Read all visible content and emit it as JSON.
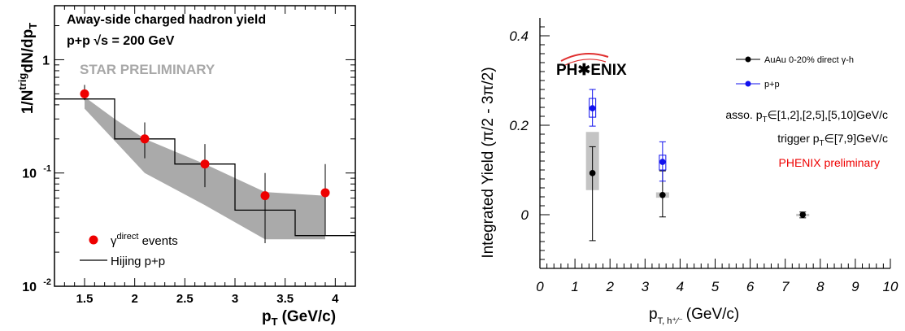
{
  "chart_data": [
    {
      "type": "scatter",
      "title_lines": [
        "Away-side charged hadron yield",
        "p+p √s = 200 GeV"
      ],
      "preliminary": "STAR PRELIMINARY",
      "xlabel": "p",
      "xlabel_sub": "T",
      "xlabel_unit": "(GeV/c)",
      "ylabel_parts": [
        "1/N",
        "trig",
        "dN/dp",
        "T"
      ],
      "xlim": [
        1.2,
        4.2
      ],
      "ylim": [
        0.01,
        3.0
      ],
      "yscale": "log",
      "xticks": [
        1.5,
        2,
        2.5,
        3,
        3.5,
        4
      ],
      "xtick_labels": [
        "1.5",
        "2",
        "2.5",
        "3",
        "3.5",
        "4"
      ],
      "yticks": [
        {
          "value": 1,
          "base": "1",
          "exp": ""
        },
        {
          "value": 0.1,
          "base": "10",
          "exp": "-1"
        },
        {
          "value": 0.01,
          "base": "10",
          "exp": "-2"
        }
      ],
      "band": {
        "color": "#aaaaaa",
        "upper": [
          [
            1.5,
            0.47
          ],
          [
            1.8,
            0.3
          ],
          [
            2.1,
            0.2
          ],
          [
            2.7,
            0.12
          ],
          [
            3.3,
            0.068
          ],
          [
            3.9,
            0.063
          ]
        ],
        "lower": [
          [
            3.9,
            0.026
          ],
          [
            3.3,
            0.026
          ],
          [
            2.7,
            0.052
          ],
          [
            2.1,
            0.1
          ],
          [
            1.5,
            0.37
          ]
        ]
      },
      "hijing": {
        "color": "#000000",
        "bins": [
          [
            1.2,
            1.8,
            0.45
          ],
          [
            1.8,
            2.4,
            0.2
          ],
          [
            2.4,
            3.0,
            0.12
          ],
          [
            3.0,
            3.6,
            0.047
          ],
          [
            3.6,
            4.2,
            0.028
          ]
        ]
      },
      "points": {
        "color": "#ee0000",
        "x": [
          1.5,
          2.1,
          2.7,
          3.3,
          3.9
        ],
        "y": [
          0.5,
          0.2,
          0.12,
          0.063,
          0.067
        ],
        "err_low": [
          0.44,
          0.135,
          0.075,
          0.024,
          0.028
        ],
        "err_high": [
          0.6,
          0.28,
          0.18,
          0.1,
          0.12
        ]
      },
      "legend": [
        {
          "kind": "marker",
          "text": "γ",
          "sup": "direct",
          "tail": " events"
        },
        {
          "kind": "line",
          "text": "Hijing p+p",
          "sup": "",
          "tail": ""
        }
      ]
    },
    {
      "type": "scatter",
      "logo": "PH✱ENIX",
      "ylabel": "Integrated Yield (π/2 - 3π/2)",
      "xlabel": "p",
      "xlabel_sub": "T, h⁺⁄⁻",
      "xlabel_unit": "(GeV/c)",
      "xlim": [
        0,
        10
      ],
      "ylim": [
        -0.12,
        0.44
      ],
      "xticks": [
        0,
        1,
        2,
        3,
        4,
        5,
        6,
        7,
        8,
        9,
        10
      ],
      "xtick_labels": [
        "0",
        "1",
        "2",
        "3",
        "4",
        "5",
        "6",
        "7",
        "8",
        "9",
        "10"
      ],
      "yticks": [
        0,
        0.2,
        0.4
      ],
      "ytick_labels": [
        "0",
        "0.2",
        "0.4"
      ],
      "annotations": [
        {
          "text": "asso. p",
          "sub": "T",
          "tail": "∈[1,2],[2,5],[5,10]GeV/c",
          "color": "#000000"
        },
        {
          "text": "trigger p",
          "sub": "T",
          "tail": "∈[7,9]GeV/c",
          "color": "#000000"
        },
        {
          "text": "PHENIX preliminary",
          "sub": "",
          "tail": "",
          "color": "#ee0000"
        }
      ],
      "series": [
        {
          "name": "AuAu 0-20% direct γ-h",
          "color": "#000000",
          "x": [
            1.5,
            3.5,
            7.5
          ],
          "y": [
            0.093,
            0.044,
            0.0
          ],
          "err_low": [
            -0.058,
            -0.005,
            -0.007
          ],
          "err_high": [
            0.152,
            0.098,
            0.006
          ],
          "sys_low": [
            0.055,
            0.038,
            -0.002
          ],
          "sys_high": [
            0.185,
            0.05,
            0.002
          ]
        },
        {
          "name": "p+p",
          "color": "#1111ee",
          "x": [
            1.5,
            3.5
          ],
          "y": [
            0.238,
            0.118
          ],
          "err_low": [
            0.198,
            0.075
          ],
          "err_high": [
            0.28,
            0.163
          ],
          "sys_low": [
            0.218,
            0.1
          ],
          "sys_high": [
            0.26,
            0.133
          ]
        }
      ]
    }
  ]
}
